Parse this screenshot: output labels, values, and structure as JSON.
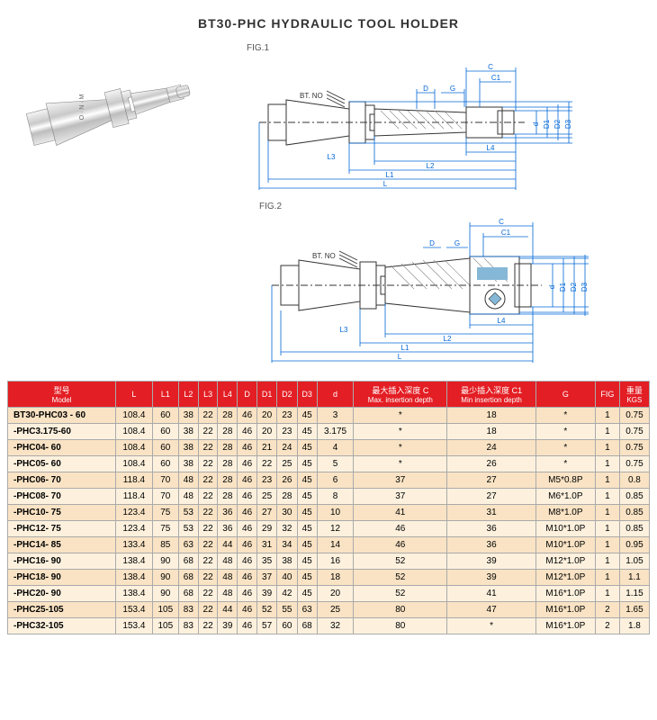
{
  "title": "BT30-PHC HYDRAULIC TOOL HOLDER",
  "fig1_label": "FIG.1",
  "fig2_label": "FIG.2",
  "btno": "BT. NO",
  "table": {
    "columns": [
      {
        "zh": "型号",
        "en": "Model"
      },
      {
        "zh": "",
        "en": "L"
      },
      {
        "zh": "",
        "en": "L1"
      },
      {
        "zh": "",
        "en": "L2"
      },
      {
        "zh": "",
        "en": "L3"
      },
      {
        "zh": "",
        "en": "L4"
      },
      {
        "zh": "",
        "en": "D"
      },
      {
        "zh": "",
        "en": "D1"
      },
      {
        "zh": "",
        "en": "D2"
      },
      {
        "zh": "",
        "en": "D3"
      },
      {
        "zh": "",
        "en": "d"
      },
      {
        "zh": "最大插入深度 C",
        "en": "Max. insertion depth"
      },
      {
        "zh": "最少插入深度 C1",
        "en": "Min insertion depth"
      },
      {
        "zh": "",
        "en": "G"
      },
      {
        "zh": "",
        "en": "FIG"
      },
      {
        "zh": "重量",
        "en": "KGS"
      }
    ],
    "rows": [
      [
        "BT30-PHC03 - 60",
        "108.4",
        "60",
        "38",
        "22",
        "28",
        "46",
        "20",
        "23",
        "45",
        "3",
        "*",
        "18",
        "*",
        "1",
        "0.75"
      ],
      [
        "-PHC3.175-60",
        "108.4",
        "60",
        "38",
        "22",
        "28",
        "46",
        "20",
        "23",
        "45",
        "3.175",
        "*",
        "18",
        "*",
        "1",
        "0.75"
      ],
      [
        "-PHC04- 60",
        "108.4",
        "60",
        "38",
        "22",
        "28",
        "46",
        "21",
        "24",
        "45",
        "4",
        "*",
        "24",
        "*",
        "1",
        "0.75"
      ],
      [
        "-PHC05- 60",
        "108.4",
        "60",
        "38",
        "22",
        "28",
        "46",
        "22",
        "25",
        "45",
        "5",
        "*",
        "26",
        "*",
        "1",
        "0.75"
      ],
      [
        "-PHC06- 70",
        "118.4",
        "70",
        "48",
        "22",
        "28",
        "46",
        "23",
        "26",
        "45",
        "6",
        "37",
        "27",
        "M5*0.8P",
        "1",
        "0.8"
      ],
      [
        "-PHC08- 70",
        "118.4",
        "70",
        "48",
        "22",
        "28",
        "46",
        "25",
        "28",
        "45",
        "8",
        "37",
        "27",
        "M6*1.0P",
        "1",
        "0.85"
      ],
      [
        "-PHC10- 75",
        "123.4",
        "75",
        "53",
        "22",
        "36",
        "46",
        "27",
        "30",
        "45",
        "10",
        "41",
        "31",
        "M8*1.0P",
        "1",
        "0.85"
      ],
      [
        "-PHC12- 75",
        "123.4",
        "75",
        "53",
        "22",
        "36",
        "46",
        "29",
        "32",
        "45",
        "12",
        "46",
        "36",
        "M10*1.0P",
        "1",
        "0.85"
      ],
      [
        "-PHC14- 85",
        "133.4",
        "85",
        "63",
        "22",
        "44",
        "46",
        "31",
        "34",
        "45",
        "14",
        "46",
        "36",
        "M10*1.0P",
        "1",
        "0.95"
      ],
      [
        "-PHC16- 90",
        "138.4",
        "90",
        "68",
        "22",
        "48",
        "46",
        "35",
        "38",
        "45",
        "16",
        "52",
        "39",
        "M12*1.0P",
        "1",
        "1.05"
      ],
      [
        "-PHC18- 90",
        "138.4",
        "90",
        "68",
        "22",
        "48",
        "46",
        "37",
        "40",
        "45",
        "18",
        "52",
        "39",
        "M12*1.0P",
        "1",
        "1.1"
      ],
      [
        "-PHC20- 90",
        "138.4",
        "90",
        "68",
        "22",
        "48",
        "46",
        "39",
        "42",
        "45",
        "20",
        "52",
        "41",
        "M16*1.0P",
        "1",
        "1.15"
      ],
      [
        "-PHC25-105",
        "153.4",
        "105",
        "83",
        "22",
        "44",
        "46",
        "52",
        "55",
        "63",
        "25",
        "80",
        "47",
        "M16*1.0P",
        "2",
        "1.65"
      ],
      [
        "-PHC32-105",
        "153.4",
        "105",
        "83",
        "22",
        "39",
        "46",
        "57",
        "60",
        "68",
        "32",
        "80",
        "*",
        "M16*1.0P",
        "2",
        "1.8"
      ]
    ]
  },
  "colors": {
    "dim_line": "#0066d6",
    "outline": "#333333",
    "hatch": "#888888"
  }
}
